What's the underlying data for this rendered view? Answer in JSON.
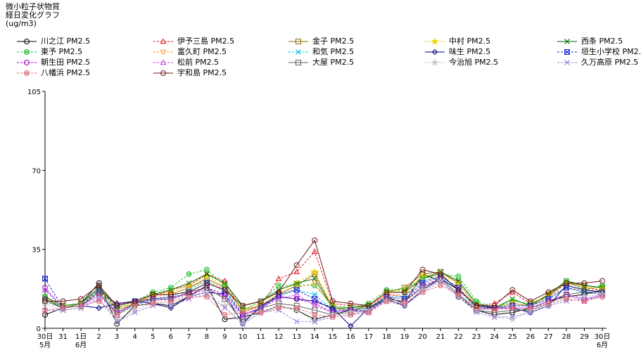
{
  "title": {
    "line1": "微小粒子状物質",
    "line2": "経日変化グラフ",
    "line3": "(ug/m3)"
  },
  "chart_data": {
    "type": "line",
    "title": "微小粒子状物質 経日変化グラフ",
    "ylabel": "(ug/m3)",
    "ylim": [
      0,
      105
    ],
    "yticks": [
      0,
      35,
      70,
      105
    ],
    "grid": false,
    "legend_position": "top",
    "categories": [
      "30日",
      "31",
      "1日",
      "2",
      "3",
      "4",
      "5",
      "6",
      "7",
      "8",
      "9",
      "10",
      "11",
      "12",
      "13",
      "14",
      "15",
      "16",
      "17",
      "18",
      "19",
      "20",
      "21",
      "22",
      "23",
      "24",
      "25",
      "26",
      "27",
      "28",
      "29",
      "30日"
    ],
    "category_sublabels": {
      "0": "5月",
      "2": "6月",
      "31": "6月"
    },
    "series": [
      {
        "name": "川之江 PM2.5",
        "color": "#000000",
        "marker": "circle",
        "dashed": false,
        "values": [
          6,
          9,
          11,
          20,
          2,
          10,
          11,
          10,
          14,
          19,
          4,
          5,
          7,
          10,
          8,
          4,
          6,
          8,
          9,
          14,
          11,
          24,
          21,
          14,
          8,
          6,
          7,
          9,
          12,
          14,
          15,
          17
        ]
      },
      {
        "name": "伊予三島 PM2.5",
        "color": "#e8111b",
        "marker": "triangle",
        "dashed": true,
        "values": [
          13,
          9,
          10,
          16,
          11,
          11,
          14,
          17,
          19,
          24,
          21,
          7,
          10,
          22,
          25,
          34,
          11,
          10,
          10,
          15,
          14,
          22,
          24,
          17,
          10,
          11,
          16,
          11,
          14,
          20,
          18,
          17
        ]
      },
      {
        "name": "金子 PM2.5",
        "color": "#8b6b00",
        "marker": "square",
        "dashed": false,
        "values": [
          12,
          9,
          11,
          18,
          8,
          11,
          15,
          15,
          18,
          22,
          18,
          8,
          10,
          15,
          19,
          24,
          9,
          8,
          10,
          16,
          18,
          24,
          25,
          20,
          10,
          9,
          11,
          10,
          15,
          20,
          19,
          18
        ]
      },
      {
        "name": "中村 PM2.5",
        "color": "#f2d000",
        "marker": "star",
        "dashed": true,
        "values": [
          13,
          10,
          11,
          17,
          9,
          11,
          15,
          16,
          19,
          23,
          19,
          8,
          11,
          16,
          20,
          25,
          10,
          9,
          10,
          16,
          17,
          23,
          24,
          20,
          10,
          9,
          12,
          11,
          15,
          20,
          18,
          18
        ]
      },
      {
        "name": "西条 PM2.5",
        "color": "#006400",
        "marker": "x",
        "dashed": false,
        "values": [
          14,
          10,
          11,
          18,
          10,
          12,
          15,
          17,
          20,
          24,
          20,
          10,
          12,
          17,
          20,
          22,
          9,
          9,
          10,
          16,
          16,
          22,
          25,
          21,
          11,
          9,
          13,
          10,
          15,
          21,
          19,
          18
        ]
      },
      {
        "name": "東予 PM2.5",
        "color": "#22c22e",
        "marker": "circle-x",
        "dashed": true,
        "values": [
          14,
          9,
          11,
          17,
          9,
          12,
          16,
          18,
          24,
          26,
          19,
          8,
          12,
          19,
          19,
          19,
          10,
          9,
          11,
          17,
          17,
          22,
          24,
          23,
          12,
          9,
          12,
          11,
          14,
          21,
          17,
          19
        ]
      },
      {
        "name": "富久町 PM2.5",
        "color": "#ffa030",
        "marker": "triangle-down",
        "dashed": true,
        "values": [
          12,
          9,
          10,
          16,
          8,
          11,
          14,
          15,
          18,
          21,
          17,
          7,
          10,
          14,
          18,
          20,
          9,
          8,
          9,
          15,
          15,
          21,
          23,
          18,
          10,
          9,
          11,
          10,
          14,
          18,
          17,
          17
        ]
      },
      {
        "name": "和気 PM2.5",
        "color": "#00c8e6",
        "marker": "asterisk",
        "dashed": true,
        "values": [
          12,
          9,
          10,
          16,
          7,
          10,
          13,
          14,
          17,
          21,
          16,
          6,
          9,
          14,
          17,
          15,
          8,
          8,
          9,
          14,
          14,
          21,
          23,
          17,
          9,
          9,
          10,
          10,
          13,
          18,
          16,
          16
        ]
      },
      {
        "name": "味生 PM2.5",
        "color": "#000080",
        "marker": "diamond",
        "dashed": false,
        "values": [
          13,
          9,
          10,
          9,
          11,
          12,
          11,
          9,
          14,
          16,
          15,
          2,
          10,
          14,
          13,
          12,
          9,
          1,
          9,
          13,
          10,
          17,
          22,
          17,
          10,
          9,
          9,
          7,
          10,
          19,
          17,
          16
        ]
      },
      {
        "name": "垣生小学校 PM2.",
        "color": "#1a24d6",
        "marker": "x-box",
        "dashed": true,
        "values": [
          22,
          9,
          10,
          17,
          10,
          12,
          13,
          13,
          16,
          20,
          17,
          6,
          9,
          15,
          17,
          13,
          8,
          8,
          8,
          14,
          13,
          20,
          23,
          18,
          9,
          9,
          10,
          10,
          13,
          18,
          16,
          15
        ]
      },
      {
        "name": "朝生田 PM2.5",
        "color": "#a000c8",
        "marker": "circle",
        "dashed": true,
        "values": [
          18,
          9,
          10,
          15,
          7,
          11,
          13,
          14,
          15,
          18,
          15,
          6,
          9,
          14,
          13,
          11,
          7,
          8,
          7,
          13,
          12,
          19,
          22,
          15,
          9,
          9,
          9,
          9,
          12,
          15,
          13,
          14
        ]
      },
      {
        "name": "松前 PM2.5",
        "color": "#c040e0",
        "marker": "triangle",
        "dashed": true,
        "values": [
          17,
          9,
          10,
          14,
          7,
          11,
          12,
          13,
          15,
          17,
          14,
          5,
          9,
          13,
          15,
          10,
          7,
          8,
          7,
          13,
          12,
          18,
          22,
          15,
          8,
          9,
          9,
          9,
          12,
          15,
          12,
          15
        ]
      },
      {
        "name": "大屋 PM2.5",
        "color": "#606060",
        "marker": "square",
        "dashed": false,
        "values": [
          13,
          9,
          10,
          16,
          6,
          11,
          13,
          13,
          16,
          18,
          13,
          3,
          9,
          11,
          10,
          8,
          6,
          7,
          8,
          13,
          12,
          18,
          22,
          15,
          8,
          7,
          8,
          8,
          11,
          15,
          16,
          16
        ]
      },
      {
        "name": "今治旭 PM2.5",
        "color": "#c8c8c8",
        "marker": "star",
        "dashed": true,
        "values": [
          11,
          8,
          9,
          13,
          4,
          8,
          11,
          11,
          14,
          16,
          10,
          2,
          7,
          10,
          8,
          3,
          6,
          7,
          8,
          12,
          11,
          17,
          21,
          14,
          8,
          5,
          4,
          8,
          10,
          13,
          14,
          15
        ]
      },
      {
        "name": "久万高原 PM2.5",
        "color": "#9878e0",
        "marker": "x",
        "dashed": true,
        "values": [
          8,
          8,
          9,
          13,
          3,
          7,
          10,
          10,
          13,
          15,
          9,
          2,
          7,
          8,
          3,
          3,
          5,
          6,
          8,
          12,
          10,
          16,
          21,
          14,
          7,
          5,
          5,
          7,
          10,
          12,
          13,
          15
        ]
      },
      {
        "name": "八幡浜 PM2.5",
        "color": "#e06a78",
        "marker": "circle-x",
        "dashed": true,
        "values": [
          8,
          9,
          10,
          12,
          6,
          10,
          11,
          12,
          14,
          14,
          6,
          7,
          7,
          9,
          9,
          6,
          5,
          6,
          7,
          12,
          11,
          16,
          19,
          15,
          9,
          8,
          9,
          9,
          11,
          13,
          12,
          14
        ]
      },
      {
        "name": "宇和島 PM2.5",
        "color": "#6a1a1a",
        "marker": "circle",
        "dashed": false,
        "values": [
          12,
          12,
          13,
          19,
          10,
          12,
          15,
          15,
          16,
          20,
          17,
          10,
          12,
          16,
          28,
          39,
          12,
          11,
          10,
          16,
          16,
          26,
          24,
          17,
          10,
          10,
          17,
          12,
          16,
          20,
          20,
          21
        ]
      }
    ]
  }
}
